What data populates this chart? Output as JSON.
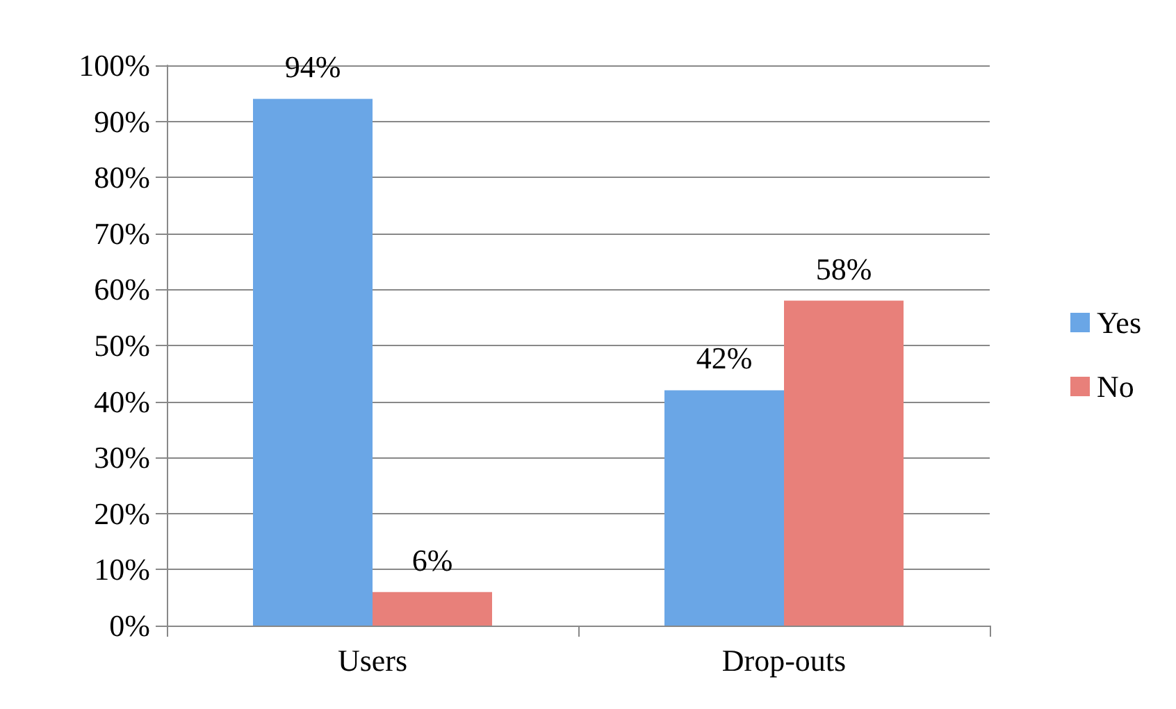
{
  "chart_data": {
    "type": "bar",
    "categories": [
      "Users",
      "Drop-outs"
    ],
    "series": [
      {
        "name": "Yes",
        "color": "#6aa6e6",
        "values": [
          94,
          42
        ],
        "value_labels": [
          "94%",
          "42%"
        ]
      },
      {
        "name": "No",
        "color": "#e8807a",
        "values": [
          6,
          58
        ],
        "value_labels": [
          "6%",
          "58%"
        ]
      }
    ],
    "ylim": [
      0,
      100
    ],
    "yticks": [
      {
        "value": 0,
        "label": "0%"
      },
      {
        "value": 10,
        "label": "10%"
      },
      {
        "value": 20,
        "label": "20%"
      },
      {
        "value": 30,
        "label": "30%"
      },
      {
        "value": 40,
        "label": "40%"
      },
      {
        "value": 50,
        "label": "50%"
      },
      {
        "value": 60,
        "label": "60%"
      },
      {
        "value": 70,
        "label": "70%"
      },
      {
        "value": 80,
        "label": "80%"
      },
      {
        "value": 90,
        "label": "90%"
      },
      {
        "value": 100,
        "label": "100%"
      }
    ],
    "grid": "y",
    "legend": "right"
  }
}
